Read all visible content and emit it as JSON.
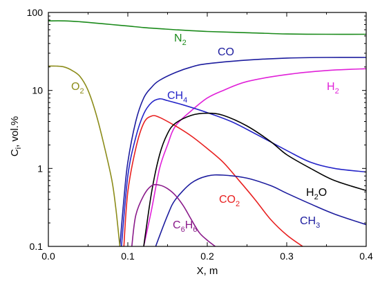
{
  "chart_data": {
    "type": "line",
    "title": "",
    "xlabel": "X, m",
    "ylabel": {
      "main": "C",
      "sub": "i",
      "rest": ", vol.%"
    },
    "xlim": [
      0.0,
      0.4
    ],
    "ylim": [
      0.1,
      100
    ],
    "yscale": "log",
    "x_ticks": [
      "0.0",
      "0.1",
      "0.2",
      "0.3",
      "0.4"
    ],
    "y_ticks": [
      "0.1",
      "1",
      "10",
      "100"
    ],
    "grid": false,
    "series": [
      {
        "name": "N2",
        "label_main": "N",
        "label_sub": "2",
        "color": "#1a8a1a",
        "points": [
          [
            0.0,
            78
          ],
          [
            0.02,
            78
          ],
          [
            0.04,
            76
          ],
          [
            0.06,
            73
          ],
          [
            0.08,
            70
          ],
          [
            0.1,
            67
          ],
          [
            0.12,
            64
          ],
          [
            0.14,
            62
          ],
          [
            0.16,
            60
          ],
          [
            0.2,
            57
          ],
          [
            0.25,
            55
          ],
          [
            0.3,
            53
          ],
          [
            0.35,
            52.5
          ],
          [
            0.4,
            52.5
          ]
        ]
      },
      {
        "name": "CO",
        "label_main": "CO",
        "label_sub": "",
        "color": "#1c1c9e",
        "points": [
          [
            0.09,
            0.1
          ],
          [
            0.095,
            0.4
          ],
          [
            0.1,
            1.2
          ],
          [
            0.11,
            4
          ],
          [
            0.12,
            8
          ],
          [
            0.13,
            11
          ],
          [
            0.14,
            13.5
          ],
          [
            0.16,
            17
          ],
          [
            0.18,
            20
          ],
          [
            0.2,
            22
          ],
          [
            0.25,
            24.5
          ],
          [
            0.3,
            26
          ],
          [
            0.35,
            26.5
          ],
          [
            0.4,
            26.5
          ]
        ]
      },
      {
        "name": "O2",
        "label_main": "O",
        "label_sub": "2",
        "color": "#8c8c1a",
        "points": [
          [
            0.0,
            20.5
          ],
          [
            0.01,
            20.5
          ],
          [
            0.02,
            20
          ],
          [
            0.03,
            18
          ],
          [
            0.04,
            15
          ],
          [
            0.05,
            10
          ],
          [
            0.06,
            5
          ],
          [
            0.07,
            2
          ],
          [
            0.08,
            0.7
          ],
          [
            0.085,
            0.3
          ],
          [
            0.09,
            0.1
          ]
        ]
      },
      {
        "name": "H2",
        "label_main": "H",
        "label_sub": "2",
        "color": "#e020d8",
        "points": [
          [
            0.12,
            0.1
          ],
          [
            0.13,
            0.3
          ],
          [
            0.14,
            1
          ],
          [
            0.15,
            2
          ],
          [
            0.16,
            3.5
          ],
          [
            0.18,
            5.5
          ],
          [
            0.2,
            8
          ],
          [
            0.22,
            10
          ],
          [
            0.25,
            13
          ],
          [
            0.3,
            16
          ],
          [
            0.35,
            18
          ],
          [
            0.4,
            19
          ]
        ]
      },
      {
        "name": "CH4",
        "label_main": "CH",
        "label_sub": "4",
        "color": "#2424c8",
        "points": [
          [
            0.092,
            0.1
          ],
          [
            0.1,
            0.8
          ],
          [
            0.11,
            2.5
          ],
          [
            0.12,
            5
          ],
          [
            0.13,
            7
          ],
          [
            0.14,
            7.8
          ],
          [
            0.15,
            7.4
          ],
          [
            0.17,
            6.5
          ],
          [
            0.2,
            5.2
          ],
          [
            0.23,
            4
          ],
          [
            0.26,
            2.8
          ],
          [
            0.3,
            1.7
          ],
          [
            0.33,
            1.2
          ],
          [
            0.36,
            1.0
          ],
          [
            0.4,
            0.9
          ]
        ]
      },
      {
        "name": "CO2",
        "label_main": "CO",
        "label_sub": "2",
        "color": "#e82020",
        "points": [
          [
            0.095,
            0.1
          ],
          [
            0.1,
            0.5
          ],
          [
            0.11,
            1.8
          ],
          [
            0.12,
            3.8
          ],
          [
            0.13,
            4.7
          ],
          [
            0.14,
            4.5
          ],
          [
            0.16,
            3.5
          ],
          [
            0.18,
            2.6
          ],
          [
            0.2,
            1.8
          ],
          [
            0.22,
            1.2
          ],
          [
            0.24,
            0.7
          ],
          [
            0.26,
            0.4
          ],
          [
            0.28,
            0.22
          ],
          [
            0.3,
            0.14
          ],
          [
            0.32,
            0.1
          ]
        ]
      },
      {
        "name": "H2O",
        "label_main": "H",
        "label_sub": "2",
        "label_tail": "O",
        "color": "#000000",
        "points": [
          [
            0.12,
            0.1
          ],
          [
            0.13,
            0.5
          ],
          [
            0.14,
            1.5
          ],
          [
            0.15,
            2.8
          ],
          [
            0.16,
            3.8
          ],
          [
            0.18,
            4.8
          ],
          [
            0.2,
            5.1
          ],
          [
            0.22,
            4.8
          ],
          [
            0.25,
            3.5
          ],
          [
            0.28,
            2.2
          ],
          [
            0.3,
            1.5
          ],
          [
            0.33,
            1.0
          ],
          [
            0.36,
            0.7
          ],
          [
            0.4,
            0.52
          ]
        ]
      },
      {
        "name": "CH3",
        "label_main": "CH",
        "label_sub": "3",
        "color": "#1c1c9e",
        "points": [
          [
            0.135,
            0.1
          ],
          [
            0.15,
            0.25
          ],
          [
            0.16,
            0.4
          ],
          [
            0.18,
            0.65
          ],
          [
            0.2,
            0.8
          ],
          [
            0.22,
            0.82
          ],
          [
            0.25,
            0.75
          ],
          [
            0.28,
            0.6
          ],
          [
            0.3,
            0.48
          ],
          [
            0.33,
            0.35
          ],
          [
            0.36,
            0.26
          ],
          [
            0.4,
            0.19
          ]
        ]
      },
      {
        "name": "C6H6",
        "label_main": "C",
        "label_sub": "6",
        "label_tail": "H",
        "label_sub2": "6",
        "color": "#8a1a8a",
        "points": [
          [
            0.105,
            0.1
          ],
          [
            0.11,
            0.25
          ],
          [
            0.12,
            0.45
          ],
          [
            0.13,
            0.6
          ],
          [
            0.14,
            0.61
          ],
          [
            0.15,
            0.55
          ],
          [
            0.16,
            0.45
          ],
          [
            0.17,
            0.33
          ],
          [
            0.18,
            0.22
          ],
          [
            0.19,
            0.15
          ],
          [
            0.2,
            0.12
          ],
          [
            0.21,
            0.1
          ]
        ]
      }
    ]
  }
}
